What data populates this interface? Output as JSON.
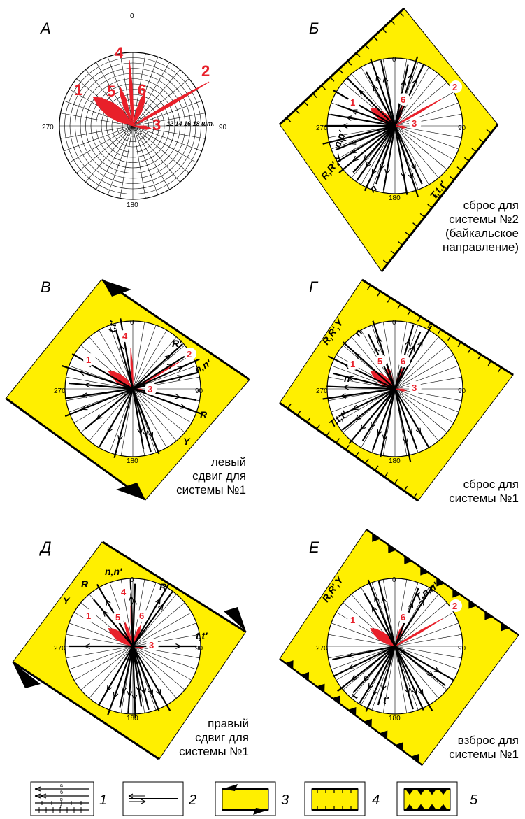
{
  "panels": [
    {
      "id": "a",
      "label": "А",
      "degrees": [
        "0",
        "90",
        "180",
        "270"
      ],
      "scale": "12 14 16 18 шт.",
      "rose_labels": [
        "1",
        "2",
        "3",
        "4",
        "5",
        "6"
      ],
      "caption": []
    },
    {
      "id": "b",
      "label": "Б",
      "degrees": [
        "0",
        "90",
        "180",
        "270"
      ],
      "rose_labels": [
        "1",
        "2",
        "3",
        "6"
      ],
      "fault_labels": [
        "R,R',Y",
        "n,n'",
        "n",
        "T,t,t'"
      ],
      "caption": [
        "сброс для",
        "системы №2",
        "(байкальское",
        "направление)"
      ]
    },
    {
      "id": "v",
      "label": "В",
      "degrees": [
        "0",
        "90",
        "180",
        "270"
      ],
      "rose_labels": [
        "1",
        "2",
        "3",
        "4"
      ],
      "fault_labels": [
        "t,t'",
        "R'",
        "n,n'",
        "R",
        "Y"
      ],
      "caption": [
        "левый",
        "сдвиг для",
        "системы №1"
      ]
    },
    {
      "id": "g",
      "label": "Г",
      "degrees": [
        "0",
        "90",
        "180",
        "270"
      ],
      "rose_labels": [
        "1",
        "3",
        "5",
        "6"
      ],
      "fault_labels": [
        "R,R',Y",
        "n",
        "n",
        "T,t,t'"
      ],
      "caption": [
        "сброс для",
        "системы №1"
      ]
    },
    {
      "id": "d",
      "label": "Д",
      "degrees": [
        "0",
        "90",
        "180",
        "270"
      ],
      "rose_labels": [
        "1",
        "3",
        "4",
        "5",
        "6"
      ],
      "fault_labels": [
        "n,n'",
        "R",
        "R'",
        "Y",
        "t,t'"
      ],
      "caption": [
        "правый",
        "сдвиг для",
        "системы №1"
      ]
    },
    {
      "id": "e",
      "label": "Е",
      "degrees": [
        "0",
        "90",
        "180",
        "270"
      ],
      "rose_labels": [
        "1",
        "2",
        "6"
      ],
      "fault_labels": [
        "R,R',Y",
        "T,n,n'",
        "t",
        "t'"
      ],
      "caption": [
        "взброс для",
        "системы №1"
      ]
    }
  ],
  "legend": {
    "items": [
      "1",
      "2",
      "3",
      "4",
      "5"
    ],
    "sub_labels": [
      "а",
      "б",
      "в",
      "г"
    ]
  },
  "colors": {
    "zone_fill": "#ffef00",
    "rose_red": "#e8202a",
    "line": "#000000"
  }
}
